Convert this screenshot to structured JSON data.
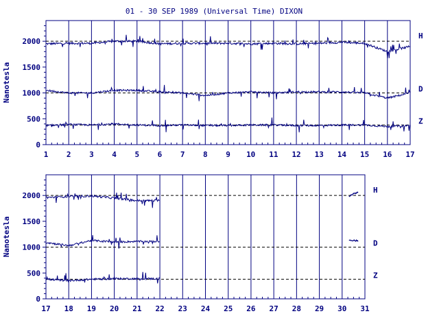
{
  "title": "01 - 30 SEP 1989 (Universal Time) DIXON",
  "colors": {
    "ink": "#000080",
    "background": "#ffffff"
  },
  "chart_data": [
    {
      "type": "line",
      "panel": "top",
      "ylabel": "Nanotesla",
      "xlim": [
        1,
        17
      ],
      "ylim": [
        0,
        2400
      ],
      "x_ticks": [
        "1",
        "2",
        "3",
        "4",
        "5",
        "6",
        "7",
        "8",
        "9",
        "10",
        "11",
        "12",
        "13",
        "14",
        "15",
        "16",
        "17"
      ],
      "y_ticks": [
        "0",
        "500",
        "1000",
        "1500",
        "2000"
      ],
      "vertical_grid": true,
      "series": [
        {
          "name": "H",
          "baseline": 2000,
          "values_by_day": [
            1950,
            1960,
            1960,
            2000,
            2000,
            1950,
            1960,
            1960,
            1960,
            1950,
            1960,
            1950,
            1960,
            1980,
            1960,
            1800,
            1900
          ]
        },
        {
          "name": "D",
          "baseline": 1000,
          "values_by_day": [
            1050,
            1000,
            1000,
            1050,
            1050,
            1020,
            1000,
            950,
            1000,
            1020,
            1000,
            1020,
            1020,
            1020,
            1000,
            900,
            1000
          ]
        },
        {
          "name": "Z",
          "baseline": 380,
          "values_by_day": [
            370,
            390,
            380,
            400,
            380,
            370,
            380,
            370,
            370,
            380,
            380,
            370,
            370,
            380,
            380,
            350,
            370
          ]
        }
      ]
    },
    {
      "type": "line",
      "panel": "bottom",
      "ylabel": "Nanotesla",
      "xlim": [
        17,
        31
      ],
      "ylim": [
        0,
        2400
      ],
      "x_ticks": [
        "17",
        "18",
        "19",
        "20",
        "21",
        "22",
        "23",
        "24",
        "25",
        "26",
        "27",
        "28",
        "29",
        "30",
        "31"
      ],
      "y_ticks": [
        "0",
        "500",
        "1000",
        "1500",
        "2000"
      ],
      "vertical_grid": true,
      "series": [
        {
          "name": "H",
          "baseline": 2000,
          "values_by_day": [
            1960,
            1980,
            1990,
            1950,
            1900
          ],
          "late_segment": {
            "x": [
              30.3,
              30.7
            ],
            "values": [
              1990,
              2070
            ]
          }
        },
        {
          "name": "D",
          "baseline": 1000,
          "values_by_day": [
            1090,
            1030,
            1130,
            1100,
            1110
          ],
          "late_segment": {
            "x": [
              30.3,
              30.7
            ],
            "values": [
              1140,
              1120
            ]
          }
        },
        {
          "name": "Z",
          "baseline": 380,
          "values_by_day": [
            380,
            350,
            380,
            390,
            390
          ]
        }
      ]
    }
  ]
}
